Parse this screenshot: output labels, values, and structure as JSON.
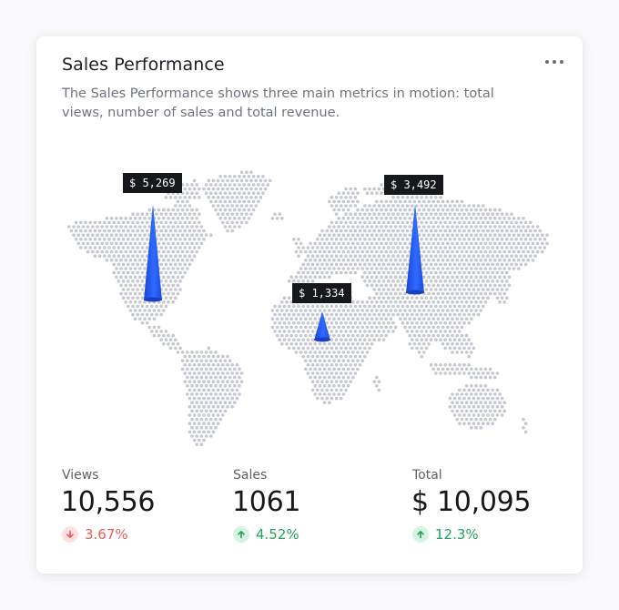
{
  "card": {
    "title": "Sales Performance",
    "description": "The Sales Performance shows three main metrics in motion: total views, number of sales and total revenue.",
    "menu_icon": "more-horizontal-icon"
  },
  "map": {
    "dot_color": "#c6c8d1",
    "marker_color": "#2a5cf5",
    "markers": [
      {
        "label": "$ 5,269",
        "region": "North America"
      },
      {
        "label": "$ 3,492",
        "region": "Asia"
      },
      {
        "label": "$ 1,334",
        "region": "Africa"
      }
    ]
  },
  "metrics": [
    {
      "label": "Views",
      "value": "10,556",
      "change": "3.67%",
      "trend": "down",
      "icon": "arrow-down-icon"
    },
    {
      "label": "Sales",
      "value": "1061",
      "change": "4.52%",
      "trend": "up",
      "icon": "arrow-up-icon"
    },
    {
      "label": "Total",
      "value": "$ 10,095",
      "change": "12.3%",
      "trend": "up",
      "icon": "arrow-up-icon"
    }
  ],
  "colors": {
    "negative": "#ef5a5a",
    "positive": "#23a25a"
  }
}
